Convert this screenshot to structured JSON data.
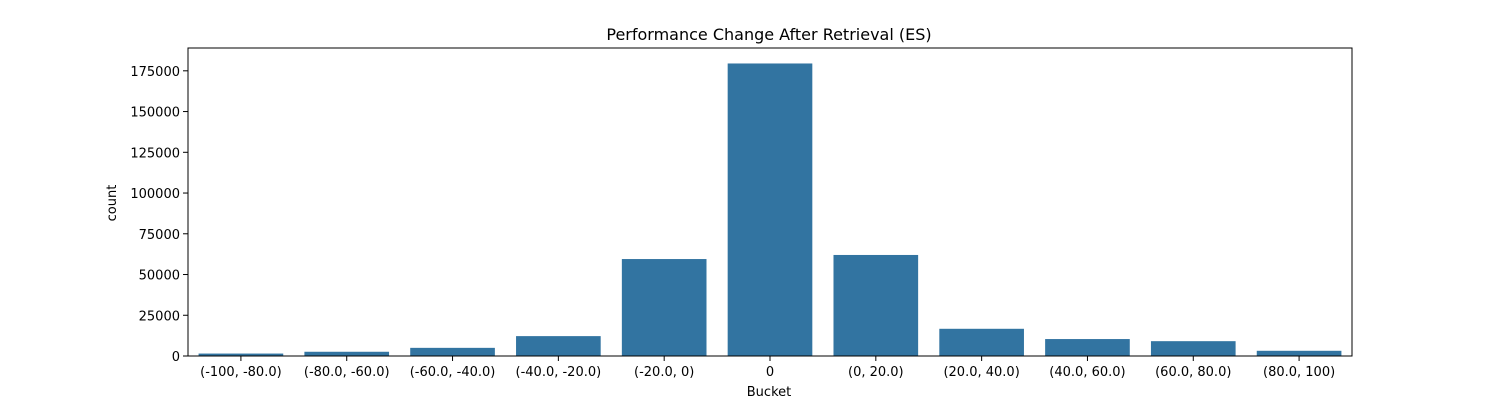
{
  "chart_data": {
    "type": "bar",
    "title": "Performance Change After Retrieval (ES)",
    "xlabel": "Bucket",
    "ylabel": "count",
    "categories": [
      "(-100, -80.0)",
      "(-80.0, -60.0)",
      "(-60.0, -40.0)",
      "(-40.0, -20.0)",
      "(-20.0, 0)",
      "0",
      "(0, 20.0)",
      "(20.0, 40.0)",
      "(40.0, 60.0)",
      "(60.0, 80.0)",
      "(80.0, 100)"
    ],
    "values": [
      1500,
      2600,
      5000,
      12200,
      59500,
      179500,
      62000,
      16700,
      10400,
      9100,
      3200
    ],
    "ylim": [
      0,
      189000
    ],
    "yticks": [
      0,
      25000,
      50000,
      75000,
      100000,
      125000,
      150000,
      175000
    ],
    "ytick_labels": [
      "0",
      "25000",
      "50000",
      "75000",
      "100000",
      "125000",
      "150000",
      "175000"
    ],
    "grid": false,
    "colors": {
      "bar": "#3274a1",
      "axis": "#000000"
    }
  }
}
